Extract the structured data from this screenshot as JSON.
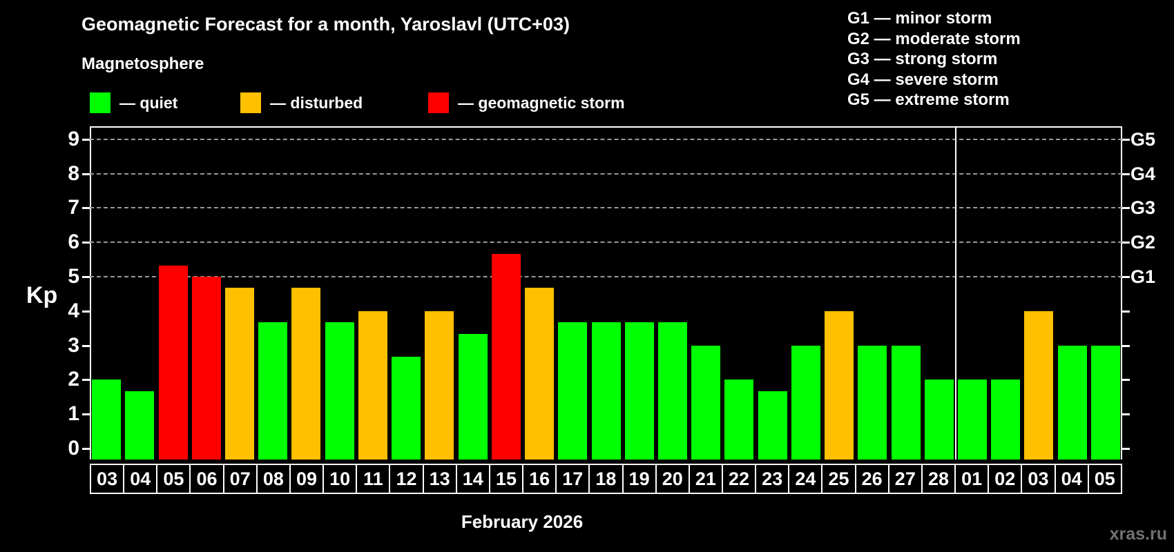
{
  "title": "Geomagnetic Forecast for a month, Yaroslavl (UTC+03)",
  "subtitle": "Magnetosphere",
  "legend": {
    "items": [
      {
        "id": "quiet",
        "label": "— quiet",
        "color": "#00ff00"
      },
      {
        "id": "disturbed",
        "label": "— disturbed",
        "color": "#ffc000"
      },
      {
        "id": "storm",
        "label": "— geomagnetic storm",
        "color": "#ff0000"
      }
    ]
  },
  "g_scale_legend": [
    "G1 — minor storm",
    "G2 — moderate storm",
    "G3 — strong storm",
    "G4 — severe storm",
    "G5 — extreme storm"
  ],
  "watermark": "xras.ru",
  "chart_data": {
    "type": "bar",
    "title": "Geomagnetic Forecast for a month, Yaroslavl (UTC+03)",
    "ylabel": "Kp",
    "xlabel": "February 2026",
    "ylim": [
      0,
      9
    ],
    "yticks": [
      0,
      1,
      2,
      3,
      4,
      5,
      6,
      7,
      8,
      9
    ],
    "grid_kp": [
      5,
      6,
      7,
      8,
      9
    ],
    "grid_style": "dashed",
    "legend_position": "top",
    "right_axis": [
      {
        "label": "G5",
        "kp": 9
      },
      {
        "label": "G4",
        "kp": 8
      },
      {
        "label": "G3",
        "kp": 7
      },
      {
        "label": "G2",
        "kp": 6
      },
      {
        "label": "G1",
        "kp": 5
      }
    ],
    "categories": [
      "03",
      "04",
      "05",
      "06",
      "07",
      "08",
      "09",
      "10",
      "11",
      "12",
      "13",
      "14",
      "15",
      "16",
      "17",
      "18",
      "19",
      "20",
      "21",
      "22",
      "23",
      "24",
      "25",
      "26",
      "27",
      "28",
      "01",
      "02",
      "03",
      "04",
      "05"
    ],
    "values": [
      2,
      1.67,
      5.33,
      5,
      4.67,
      3.67,
      4.67,
      3.67,
      4,
      2.67,
      4,
      3.33,
      5.67,
      4.67,
      3.67,
      3.67,
      3.67,
      3.67,
      3,
      2,
      1.67,
      3,
      4,
      3,
      3,
      2,
      2,
      2,
      4,
      3,
      3
    ],
    "conditions": [
      "quiet",
      "quiet",
      "storm",
      "storm",
      "disturbed",
      "quiet",
      "disturbed",
      "quiet",
      "disturbed",
      "quiet",
      "disturbed",
      "quiet",
      "storm",
      "disturbed",
      "quiet",
      "quiet",
      "quiet",
      "quiet",
      "quiet",
      "quiet",
      "quiet",
      "quiet",
      "disturbed",
      "quiet",
      "quiet",
      "quiet",
      "quiet",
      "quiet",
      "disturbed",
      "quiet",
      "quiet"
    ],
    "colors": {
      "quiet": "#00ff00",
      "disturbed": "#ffc000",
      "storm": "#ff0000"
    },
    "month_separator_after": "28",
    "separator_index": 26
  }
}
